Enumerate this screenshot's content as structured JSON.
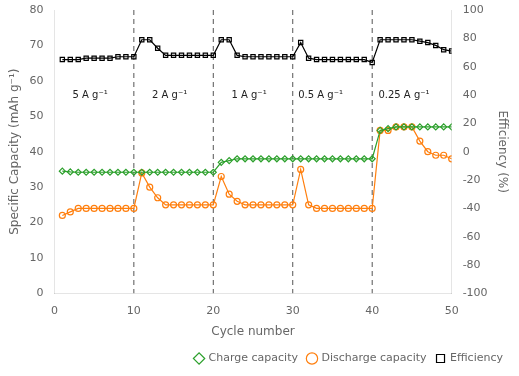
{
  "chart_data": {
    "type": "line",
    "xlabel": "Cycle number",
    "ylabel": "Specific Capacity (mAh g⁻¹)",
    "y2label": "Efficiency (%)",
    "x": [
      1,
      2,
      3,
      4,
      5,
      6,
      7,
      8,
      9,
      10,
      11,
      12,
      13,
      14,
      15,
      16,
      17,
      18,
      19,
      20,
      21,
      22,
      23,
      24,
      25,
      26,
      27,
      28,
      29,
      30,
      31,
      32,
      33,
      34,
      35,
      36,
      37,
      38,
      39,
      40,
      41,
      42,
      43,
      44,
      45,
      46,
      47,
      48,
      49,
      50
    ],
    "series": [
      {
        "name": "Charge capacity",
        "color": "#2ca02c",
        "marker": "diamond",
        "values": [
          34.5,
          34.3,
          34.2,
          34.2,
          34.2,
          34.2,
          34.2,
          34.2,
          34.2,
          34.2,
          34.2,
          34.2,
          34.2,
          34.2,
          34.2,
          34.2,
          34.2,
          34.2,
          34.2,
          34.2,
          37.0,
          37.5,
          38.0,
          38.0,
          38.0,
          38.0,
          38.0,
          38.0,
          38.0,
          38.0,
          38.0,
          38.0,
          38.0,
          38.0,
          38.0,
          38.0,
          38.0,
          38.0,
          38.0,
          38.0,
          46.0,
          46.5,
          47.0,
          47.0,
          47.0,
          47.0,
          47.0,
          47.0,
          47.0,
          47.0
        ]
      },
      {
        "name": "Discharge capacity",
        "color": "#ff7f0e",
        "marker": "circle",
        "values": [
          22,
          23,
          24,
          24,
          24,
          24,
          24,
          24,
          24,
          24,
          34,
          30,
          27,
          25,
          25,
          25,
          25,
          25,
          25,
          25,
          33,
          28,
          26,
          25,
          25,
          25,
          25,
          25,
          25,
          25,
          35,
          25,
          24,
          24,
          24,
          24,
          24,
          24,
          24,
          24,
          46,
          46,
          47,
          47,
          47,
          43,
          40,
          39,
          39,
          38
        ]
      },
      {
        "name": "Efficiency",
        "color": "#000000",
        "marker": "square",
        "axis": "y2",
        "values": [
          65,
          65,
          65,
          66,
          66,
          66,
          66,
          67,
          67,
          67,
          79,
          79,
          73,
          68,
          68,
          68,
          68,
          68,
          68,
          68,
          79,
          79,
          68,
          67,
          67,
          67,
          67,
          67,
          67,
          67,
          77,
          66,
          65,
          65,
          65,
          65,
          65,
          65,
          65,
          63,
          79,
          79,
          79,
          79,
          79,
          78,
          77,
          75,
          72,
          71
        ]
      }
    ],
    "xlim": [
      0,
      50
    ],
    "ylim": [
      0,
      80
    ],
    "y2lim": [
      -100,
      100
    ],
    "xticks": [
      0,
      10,
      20,
      30,
      40,
      50
    ],
    "yticks": [
      0,
      10,
      20,
      30,
      40,
      50,
      60,
      70,
      80
    ],
    "y2ticks": [
      -100,
      -80,
      -60,
      -40,
      -20,
      0,
      20,
      40,
      60,
      80,
      100
    ],
    "vlines": [
      10,
      20,
      30,
      40
    ],
    "annotations": [
      {
        "text": "5 A g⁻¹",
        "x": 4.5,
        "y": 56
      },
      {
        "text": "2 A g⁻¹",
        "x": 14.5,
        "y": 56
      },
      {
        "text": "1 A g⁻¹",
        "x": 24.5,
        "y": 56
      },
      {
        "text": "0.5 A g⁻¹",
        "x": 33.5,
        "y": 56
      },
      {
        "text": "0.25 A g⁻¹",
        "x": 44.0,
        "y": 56
      }
    ],
    "legend": "lower right",
    "grid": false
  }
}
